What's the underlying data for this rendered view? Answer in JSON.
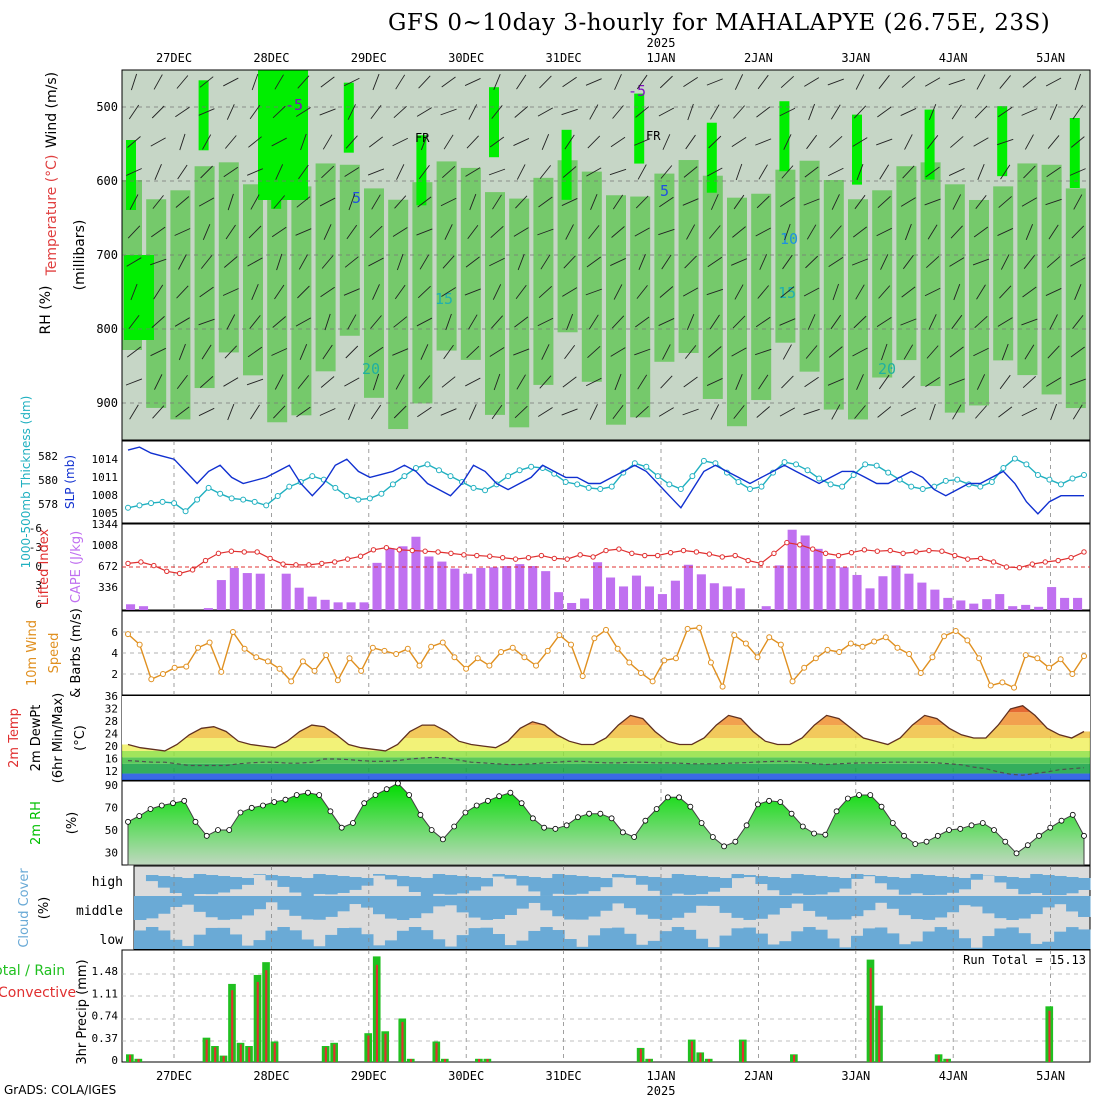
{
  "title": "GFS 0~10day 3-hourly for MAHALAPYE (26.75E, 23S)",
  "credit": "GrADS: COLA/IGES",
  "colors": {
    "frame": "#000000",
    "rh_dark": "#00ee00",
    "rh_mid": "#6cc860",
    "rh_light": "#c6d6c6",
    "slp": "#1030d0",
    "thickness": "#20b0c0",
    "lifted": "#e03030",
    "cape": "#c070f0",
    "wind10": "#e09020",
    "rh2m": "#00c000",
    "cloud": "#6aaad6",
    "cloud_bg": "#dcdcdc",
    "rain_total": "#20c020",
    "rain_conv": "#e03030"
  },
  "time_axis": {
    "days": [
      "27DEC",
      "28DEC",
      "29DEC",
      "30DEC",
      "31DEC",
      "1JAN",
      "2JAN",
      "3JAN",
      "4JAN",
      "5JAN"
    ],
    "year_label": "2025"
  },
  "panels": {
    "upper": {
      "ylabel_wind": "Wind (m/s)",
      "ylabel_temp": "Temperature (°C)",
      "ylabel_rh": "RH (%)",
      "ylabel_mb": "(millibars)",
      "levels": [
        "500",
        "600",
        "700",
        "800",
        "900"
      ],
      "contour_labels": [
        "-5",
        "FR",
        "5",
        "10",
        "15",
        "20"
      ]
    },
    "slp": {
      "ylabel_thick": "1000-500mb Thickness (dm)",
      "ylabel_slp": "SLP (mb)",
      "thick_ticks": [
        "582",
        "580",
        "578"
      ],
      "slp_ticks": [
        "1014",
        "1011",
        "1008",
        "1005"
      ]
    },
    "cape": {
      "ylabel_li": "Lifted Index",
      "ylabel_cape": "CAPE (J/kg)",
      "li_ticks": [
        "-6",
        "-3",
        "0",
        "3",
        "6"
      ],
      "cape_ticks": [
        "1344",
        "1008",
        "672",
        "336"
      ]
    },
    "wind": {
      "ylabel": "10m Wind Speed & Barbs (m/s)",
      "ticks": [
        "6",
        "4",
        "2"
      ]
    },
    "temp": {
      "ylabel": "2m Temp 2m DewPt (6hr Min/Max) (°C)",
      "ticks": [
        "36",
        "32",
        "28",
        "24",
        "20",
        "16",
        "12"
      ]
    },
    "rh": {
      "ylabel": "2m RH (%)",
      "ticks": [
        "90",
        "70",
        "50",
        "30"
      ]
    },
    "cloud": {
      "ylabel": "Cloud Cover (%)",
      "rows": [
        "high",
        "middle",
        "low"
      ]
    },
    "precip": {
      "ylabel_a": "Total / Rain",
      "ylabel_b": "Convective",
      "ylabel_c": "3hr Precip (mm)",
      "ticks": [
        "1.48",
        "1.11",
        "0.74",
        "0.37",
        "0"
      ],
      "run_total": "Run Total = 15.13"
    }
  },
  "chart_data": [
    {
      "type": "line",
      "title": "SLP and 1000-500mb Thickness",
      "series": [
        {
          "name": "SLP (mb)",
          "values": [
            1015.5,
            1016,
            1015,
            1014.5,
            1014,
            1012,
            1010,
            1012,
            1013,
            1011,
            1010,
            1010.5,
            1011,
            1012,
            1013,
            1010,
            1008,
            1010,
            1013,
            1014,
            1012,
            1011,
            1011.5,
            1012,
            1013,
            1012,
            1010,
            1009,
            1008,
            1010,
            1013,
            1012,
            1010,
            1009,
            1010,
            1011,
            1013,
            1012,
            1011,
            1011,
            1010,
            1010,
            1011,
            1012,
            1013,
            1012,
            1010,
            1008,
            1006,
            1009,
            1012,
            1013,
            1012,
            1011,
            1010,
            1011,
            1012,
            1013,
            1012,
            1011,
            1010,
            1011,
            1012,
            1012,
            1011,
            1010,
            1010,
            1011,
            1012,
            1011,
            1009,
            1008,
            1009,
            1010,
            1010,
            1011,
            1012,
            1010,
            1007,
            1005,
            1007,
            1008,
            1008,
            1008
          ]
        },
        {
          "name": "Thickness (dm)",
          "values": [
            577.8,
            578,
            578.2,
            578.3,
            578.2,
            577.5,
            578.5,
            579.5,
            579,
            578.6,
            578.5,
            578.3,
            578,
            578.8,
            579.6,
            580,
            580.5,
            580.2,
            579.5,
            578.8,
            578.5,
            578.6,
            579,
            579.8,
            580.5,
            581.2,
            581.5,
            581,
            580.5,
            580,
            579.5,
            579.3,
            579.8,
            580.5,
            581,
            581.3,
            581.2,
            580.7,
            580,
            579.8,
            579.5,
            579.4,
            579.6,
            580.8,
            581.6,
            581.3,
            580.5,
            579.8,
            579.4,
            580.5,
            581.8,
            581.6,
            580.8,
            580,
            579.4,
            579.6,
            580.8,
            581.7,
            581.5,
            581,
            580.3,
            579.8,
            579.6,
            580.6,
            581.5,
            581.4,
            580.8,
            580.2,
            579.6,
            579.4,
            579.6,
            580.1,
            580.2,
            579.8,
            579.6,
            580,
            581.2,
            582,
            581.5,
            580.6,
            580.2,
            579.8,
            580.3,
            580.6
          ]
        }
      ]
    },
    {
      "type": "bar",
      "title": "CAPE and Lifted Index",
      "series": [
        {
          "name": "CAPE (J/kg)",
          "values": [
            90,
            60,
            0,
            0,
            0,
            0,
            30,
            470,
            660,
            580,
            570,
            0,
            570,
            350,
            210,
            160,
            120,
            120,
            120,
            740,
            970,
            1000,
            1150,
            840,
            760,
            650,
            570,
            660,
            670,
            690,
            720,
            690,
            610,
            280,
            110,
            180,
            750,
            510,
            370,
            540,
            370,
            250,
            460,
            710,
            560,
            420,
            370,
            340,
            0,
            60,
            700,
            1260,
            1170,
            960,
            800,
            670,
            550,
            340,
            530,
            700,
            570,
            430,
            320,
            190,
            150,
            100,
            170,
            250,
            60,
            80,
            50,
            360,
            190,
            190
          ]
        },
        {
          "name": "Lifted Index",
          "values": [
            -0.5,
            -0.7,
            -0.2,
            0.6,
            0.9,
            0.4,
            -0.9,
            -1.9,
            -2.2,
            -2.1,
            -2.1,
            -1.2,
            -0.4,
            -0.3,
            -0.3,
            -0.5,
            -0.7,
            -1.1,
            -1.5,
            -2.4,
            -2.7,
            -2.4,
            -2.3,
            -2.2,
            -2.1,
            -1.9,
            -1.7,
            -1.6,
            -1.5,
            -1.3,
            -1.1,
            -1.3,
            -1.6,
            -1.2,
            -1.1,
            -1.7,
            -1.4,
            -2.3,
            -2.5,
            -1.9,
            -1.6,
            -1.6,
            -2.0,
            -2.3,
            -2.1,
            -1.8,
            -1.4,
            -1.6,
            -0.9,
            -0.5,
            -1.9,
            -3.4,
            -3.1,
            -2.5,
            -1.9,
            -1.6,
            -2.0,
            -2.4,
            -2.2,
            -2.3,
            -1.9,
            -2.1,
            -2.3,
            -2.2,
            -1.6,
            -1.1,
            -1.2,
            -0.7,
            0.0,
            0.1,
            -0.4,
            -0.7,
            -0.9,
            -1.3,
            -2.1
          ]
        }
      ]
    },
    {
      "type": "line",
      "title": "10m Wind Speed",
      "series": [
        {
          "name": "10m Wind Speed (m/s)",
          "values": [
            5.8,
            4.8,
            1.5,
            2,
            2.6,
            2.7,
            4.5,
            5,
            2.2,
            6,
            4.4,
            3.6,
            3.2,
            2.5,
            1.3,
            3.2,
            2.3,
            3.8,
            1.4,
            3.5,
            2.3,
            4.5,
            4.2,
            3.9,
            4.4,
            2.8,
            4.6,
            5,
            3.6,
            2.5,
            3.5,
            2.8,
            4.1,
            4.5,
            3.6,
            2.8,
            4.2,
            5.7,
            4.8,
            1.8,
            5.4,
            6.2,
            4.4,
            3.1,
            2.1,
            1.3,
            3.3,
            3.5,
            6.3,
            6.4,
            3.1,
            0.8,
            5.7,
            4.9,
            3.6,
            5.5,
            4.8,
            1.3,
            2.6,
            3.5,
            4.3,
            4.1,
            4.9,
            4.6,
            5.1,
            5.5,
            4.5,
            3.9,
            2.1,
            3.6,
            5.6,
            6.1,
            5.2,
            3.5,
            0.9,
            1.2,
            0.7,
            3.8,
            3.5,
            2.6,
            3.4,
            2,
            3.7
          ]
        }
      ]
    },
    {
      "type": "area",
      "title": "2m Temp and DewPt",
      "series": [
        {
          "name": "2m Temp (°C)",
          "values": [
            22,
            21,
            20.5,
            20,
            22,
            25,
            27,
            27.5,
            26,
            23,
            22,
            21.5,
            21,
            23,
            26,
            28,
            27.5,
            25,
            22,
            21,
            20.5,
            20,
            22,
            26,
            28,
            28,
            26,
            23,
            22,
            21.5,
            21,
            23,
            27,
            29,
            28,
            25,
            23,
            22,
            22,
            24,
            28,
            31,
            30,
            26,
            23,
            22,
            22,
            24,
            28,
            31,
            30,
            26,
            23,
            22,
            22,
            24,
            28,
            31,
            30,
            27,
            24,
            23,
            22,
            24,
            28,
            31,
            30,
            27,
            25,
            24,
            24,
            28,
            33,
            34,
            31,
            27,
            25,
            24,
            26
          ]
        },
        {
          "name": "2m DewPt (°C)",
          "values": [
            17,
            16.8,
            16.5,
            16.5,
            16,
            15.5,
            15.5,
            15.5,
            15.5,
            16,
            16.3,
            16.5,
            16.5,
            16.2,
            16.2,
            16.5,
            17.5,
            17.5,
            17.3,
            17,
            16.8,
            16.8,
            17,
            17.5,
            17.8,
            18,
            17.8,
            17.2,
            16.5,
            16.3,
            16,
            15.8,
            15.8,
            16,
            16.3,
            16.5,
            16.8,
            16.8,
            16.5,
            16.3,
            16.3,
            16.5,
            16.5,
            16.3,
            16.3,
            16.2,
            16,
            16,
            16,
            16.2,
            16.3,
            16.5,
            16.7,
            16.8,
            16.8,
            16.5,
            16,
            15.8,
            16,
            16.2,
            16.3,
            16.3,
            16.5,
            16.5,
            16.5,
            16.5,
            16.3,
            16,
            15.7,
            15,
            14.5,
            13.5,
            12.8,
            12.5,
            13,
            13.5,
            14.2,
            14.5,
            14.8
          ]
        }
      ]
    },
    {
      "type": "area",
      "title": "2m RH",
      "series": [
        {
          "name": "2m RH (%)",
          "values": [
            57,
            62,
            68,
            71,
            73,
            75,
            57,
            45,
            50,
            50,
            65,
            69,
            71,
            74,
            76,
            80,
            82,
            80,
            66,
            52,
            56,
            73,
            80,
            85,
            90,
            80,
            63,
            50,
            42,
            53,
            65,
            71,
            75,
            79,
            82,
            73,
            60,
            52,
            51,
            54,
            61,
            64,
            64,
            60,
            48,
            44,
            58,
            68,
            78,
            78,
            70,
            56,
            44,
            36,
            40,
            54,
            72,
            75,
            74,
            64,
            53,
            47,
            46,
            66,
            77,
            80,
            80,
            70,
            56,
            45,
            38,
            40,
            45,
            50,
            51,
            54,
            56,
            50,
            40,
            30,
            37,
            45,
            52,
            58,
            63,
            45
          ]
        }
      ]
    },
    {
      "type": "bar",
      "title": "3hr Precip",
      "x_unit": "3-hourly step",
      "series": [
        {
          "name": "Total / Rain (mm)",
          "values": [
            0.12,
            0.05,
            0,
            0,
            0,
            0,
            0,
            0,
            0,
            0.38,
            0.25,
            0.1,
            1.22,
            0.3,
            0.25,
            1.36,
            1.56,
            0.32,
            0,
            0,
            0,
            0,
            0,
            0.25,
            0.3,
            0,
            0,
            0,
            0.45,
            1.65,
            0.48,
            0,
            0.68,
            0.05,
            0,
            0,
            0.32,
            0.05,
            0,
            0,
            0,
            0.05,
            0.05,
            0,
            0,
            0,
            0,
            0,
            0,
            0,
            0,
            0,
            0,
            0,
            0,
            0,
            0,
            0,
            0,
            0,
            0.22,
            0.05,
            0,
            0,
            0,
            0,
            0.35,
            0.15,
            0.05,
            0,
            0,
            0,
            0.35,
            0,
            0,
            0,
            0,
            0,
            0.12,
            0,
            0,
            0,
            0,
            0,
            0,
            0,
            0,
            1.6,
            0.88,
            0,
            0,
            0,
            0,
            0,
            0,
            0.12,
            0.05,
            0,
            0,
            0,
            0,
            0,
            0,
            0,
            0,
            0,
            0,
            0,
            0.87,
            0,
            0,
            0,
            0
          ]
        }
      ]
    }
  ]
}
